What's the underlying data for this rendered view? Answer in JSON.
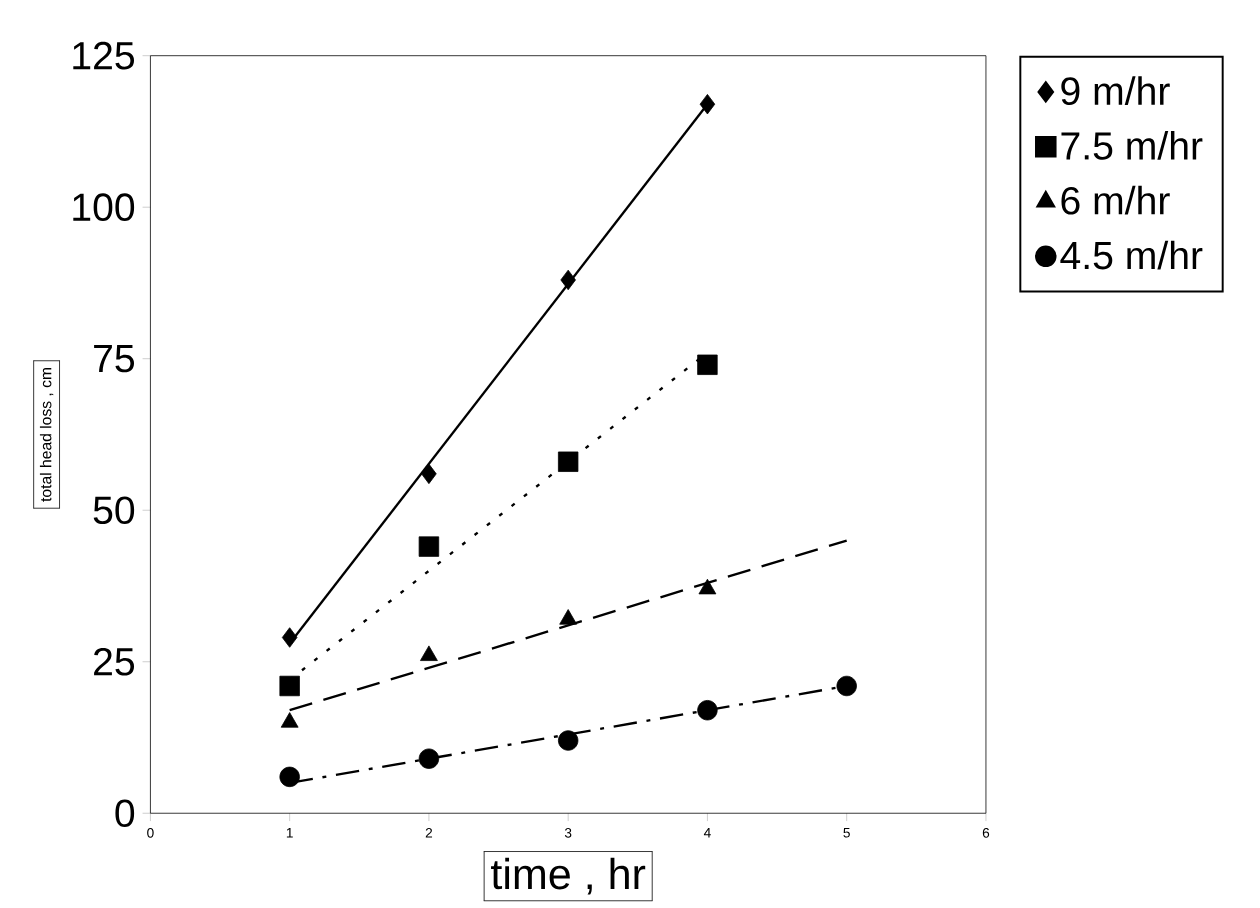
{
  "chart_data": {
    "type": "scatter",
    "xlabel": "time , hr",
    "ylabel": "total head loss , cm",
    "xlim": [
      0,
      6
    ],
    "xticks": [
      0,
      1,
      2,
      3,
      4,
      5,
      6
    ],
    "ylim": [
      0,
      125
    ],
    "yticks": [
      0,
      25,
      50,
      75,
      100,
      125
    ],
    "grid": false,
    "legend": "right",
    "series": [
      {
        "name": "9 m/hr",
        "color": "#000000",
        "marker": "diamond",
        "x": [
          1,
          2,
          3,
          4
        ],
        "values": [
          29,
          56,
          88,
          117
        ]
      },
      {
        "name": "7.5 m/hr",
        "color": "#000000",
        "marker": "square",
        "x": [
          1,
          2,
          3,
          4
        ],
        "values": [
          21,
          44,
          58,
          74
        ]
      },
      {
        "name": "6 m/hr",
        "color": "#000000",
        "marker": "triangle",
        "x": [
          1,
          2,
          3,
          4
        ],
        "values": [
          15,
          26,
          32,
          37
        ]
      },
      {
        "name": "4.5 m/hr",
        "color": "#000000",
        "marker": "circle",
        "x": [
          1,
          2,
          3,
          4,
          5
        ],
        "values": [
          6,
          9,
          12,
          17,
          21
        ]
      },
      {
        "type": "line",
        "color": "#000000",
        "marker": "none",
        "line_style": "solid",
        "x": [
          1,
          4
        ],
        "values": [
          28,
          117
        ]
      },
      {
        "type": "line",
        "color": "#000000",
        "marker": "none",
        "line_style": "dotted",
        "x": [
          1,
          4
        ],
        "values": [
          22,
          76
        ]
      },
      {
        "type": "line",
        "color": "#000000",
        "marker": "none",
        "line_style": "dashed",
        "x": [
          1,
          5
        ],
        "values": [
          17,
          45
        ]
      },
      {
        "type": "line",
        "color": "#000000",
        "marker": "none",
        "line_style": "dashdot",
        "x": [
          1,
          5
        ],
        "values": [
          5,
          21
        ]
      }
    ]
  }
}
